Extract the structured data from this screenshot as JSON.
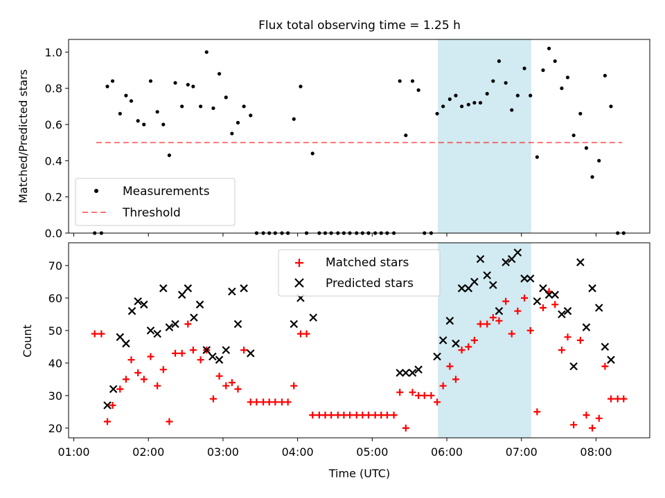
{
  "chart_data": [
    {
      "type": "scatter",
      "title": "Flux total observing time = 1.25 h",
      "xlabel": "",
      "ylabel": "Matched/Predicted stars",
      "xlim": [
        0.93,
        8.72
      ],
      "ylim": [
        0.0,
        1.07
      ],
      "yticks": [
        0.0,
        0.2,
        0.4,
        0.6,
        0.8,
        1.0
      ],
      "ytick_labels": [
        "0.0",
        "0.2",
        "0.4",
        "0.6",
        "0.8",
        "1.0"
      ],
      "shaded_span": {
        "x": [
          5.88,
          7.13
        ],
        "color": "#add8e6"
      },
      "threshold": {
        "name": "Threshold",
        "y": 0.5,
        "x": [
          1.3,
          8.35
        ],
        "color": "#ff0000"
      },
      "legend": {
        "position": "lower-left",
        "entries": [
          "Measurements",
          "Threshold"
        ]
      },
      "series": [
        {
          "name": "Measurements",
          "marker": "dot",
          "color": "#000000",
          "x": [
            1.28,
            1.37,
            1.45,
            1.52,
            1.62,
            1.7,
            1.77,
            1.86,
            1.94,
            2.03,
            2.12,
            2.2,
            2.28,
            2.36,
            2.45,
            2.53,
            2.6,
            2.7,
            2.78,
            2.87,
            2.95,
            3.04,
            3.12,
            3.2,
            3.28,
            3.37,
            3.45,
            3.54,
            3.62,
            3.7,
            3.79,
            3.87,
            3.95,
            4.04,
            4.12,
            4.2,
            4.29,
            4.37,
            4.45,
            4.54,
            4.62,
            4.7,
            4.79,
            4.87,
            4.95,
            5.04,
            5.12,
            5.2,
            5.29,
            5.37,
            5.45,
            5.54,
            5.62,
            5.7,
            5.79,
            5.87,
            5.95,
            6.04,
            6.12,
            6.2,
            6.29,
            6.37,
            6.45,
            6.54,
            6.62,
            6.7,
            6.79,
            6.87,
            6.95,
            7.04,
            7.12,
            7.21,
            7.29,
            7.37,
            7.45,
            7.54,
            7.62,
            7.7,
            7.79,
            7.87,
            7.95,
            8.04,
            8.12,
            8.2,
            8.29,
            8.37
          ],
          "y": [
            0.0,
            0.0,
            0.81,
            0.84,
            0.66,
            0.76,
            0.73,
            0.62,
            0.6,
            0.84,
            0.67,
            0.6,
            0.43,
            0.83,
            0.7,
            0.82,
            0.81,
            0.7,
            1.0,
            0.69,
            0.88,
            0.75,
            0.55,
            0.61,
            0.7,
            0.65,
            0.0,
            0.0,
            0.0,
            0.0,
            0.0,
            0.0,
            0.63,
            0.81,
            0.0,
            0.44,
            0.0,
            0.0,
            0.0,
            0.0,
            0.0,
            0.0,
            0.0,
            0.0,
            0.0,
            0.0,
            0.0,
            0.0,
            0.0,
            0.84,
            0.54,
            0.84,
            0.79,
            0.0,
            0.0,
            0.66,
            0.7,
            0.74,
            0.76,
            0.7,
            0.71,
            0.72,
            0.72,
            0.77,
            0.84,
            0.95,
            0.83,
            0.68,
            0.76,
            0.91,
            0.76,
            0.42,
            0.9,
            1.02,
            0.95,
            0.8,
            0.86,
            0.54,
            0.66,
            0.47,
            0.31,
            0.4,
            0.87,
            0.7,
            0.0,
            0.0
          ]
        }
      ]
    },
    {
      "type": "scatter",
      "title": "",
      "xlabel": "Time (UTC)",
      "ylabel": "Count",
      "xlim": [
        0.93,
        8.72
      ],
      "ylim": [
        17,
        77
      ],
      "xticks": [
        1,
        2,
        3,
        4,
        5,
        6,
        7,
        8
      ],
      "xtick_labels": [
        "01:00",
        "02:00",
        "03:00",
        "04:00",
        "05:00",
        "06:00",
        "07:00",
        "08:00"
      ],
      "yticks": [
        20,
        30,
        40,
        50,
        60,
        70
      ],
      "ytick_labels": [
        "20",
        "30",
        "40",
        "50",
        "60",
        "70"
      ],
      "shaded_span": {
        "x": [
          5.88,
          7.13
        ],
        "color": "#add8e6"
      },
      "legend": {
        "position": "upper-center",
        "entries": [
          "Matched stars",
          "Predicted stars"
        ]
      },
      "series": [
        {
          "name": "Matched stars",
          "marker": "plus",
          "color": "#ff0000",
          "x": [
            1.28,
            1.37,
            1.45,
            1.52,
            1.62,
            1.7,
            1.77,
            1.86,
            1.94,
            2.03,
            2.12,
            2.2,
            2.28,
            2.36,
            2.45,
            2.53,
            2.6,
            2.7,
            2.78,
            2.87,
            2.95,
            3.04,
            3.12,
            3.2,
            3.28,
            3.37,
            3.45,
            3.54,
            3.62,
            3.7,
            3.79,
            3.87,
            3.95,
            4.04,
            4.12,
            4.2,
            4.29,
            4.37,
            4.45,
            4.54,
            4.62,
            4.7,
            4.79,
            4.87,
            4.95,
            5.04,
            5.12,
            5.2,
            5.29,
            5.37,
            5.45,
            5.54,
            5.62,
            5.7,
            5.79,
            5.87,
            5.95,
            6.04,
            6.12,
            6.2,
            6.29,
            6.37,
            6.45,
            6.54,
            6.62,
            6.7,
            6.79,
            6.87,
            6.95,
            7.04,
            7.12,
            7.21,
            7.29,
            7.37,
            7.45,
            7.54,
            7.62,
            7.7,
            7.79,
            7.87,
            7.95,
            8.04,
            8.12,
            8.2,
            8.29,
            8.37
          ],
          "y": [
            49,
            49,
            22,
            27,
            32,
            35,
            41,
            37,
            35,
            42,
            33,
            38,
            22,
            43,
            43,
            52,
            44,
            41,
            44,
            29,
            36,
            33,
            34,
            32,
            44,
            28,
            28,
            28,
            28,
            28,
            28,
            28,
            33,
            49,
            49,
            24,
            24,
            24,
            24,
            24,
            24,
            24,
            24,
            24,
            24,
            24,
            24,
            24,
            24,
            31,
            20,
            31,
            30,
            30,
            30,
            28,
            33,
            39,
            35,
            44,
            45,
            47,
            52,
            52,
            54,
            53,
            59,
            49,
            56,
            60,
            50,
            25,
            57,
            62,
            58,
            44,
            48,
            21,
            47,
            24,
            20,
            23,
            39,
            29,
            29,
            29
          ]
        },
        {
          "name": "Predicted stars",
          "marker": "x",
          "color": "#000000",
          "x": [
            1.45,
            1.53,
            1.62,
            1.7,
            1.78,
            1.86,
            1.94,
            2.03,
            2.12,
            2.2,
            2.28,
            2.36,
            2.45,
            2.53,
            2.61,
            2.69,
            2.78,
            2.86,
            2.95,
            3.04,
            3.12,
            3.2,
            3.28,
            3.37,
            3.95,
            4.04,
            4.21,
            5.37,
            5.45,
            5.54,
            5.62,
            5.87,
            5.95,
            6.04,
            6.12,
            6.2,
            6.29,
            6.37,
            6.45,
            6.54,
            6.62,
            6.7,
            6.79,
            6.87,
            6.95,
            7.04,
            7.12,
            7.21,
            7.29,
            7.37,
            7.45,
            7.54,
            7.62,
            7.7,
            7.79,
            7.87,
            7.95,
            8.04,
            8.12,
            8.2
          ],
          "y": [
            27,
            32,
            48,
            46,
            56,
            59,
            58,
            50,
            49,
            63,
            51,
            52,
            61,
            63,
            54,
            58,
            44,
            42,
            41,
            44,
            62,
            52,
            63,
            43,
            52,
            60,
            54,
            37,
            37,
            37,
            38,
            42,
            47,
            53,
            46,
            63,
            63,
            65,
            72,
            67,
            64,
            56,
            71,
            72,
            74,
            66,
            66,
            59,
            63,
            61,
            61,
            55,
            56,
            39,
            71,
            51,
            63,
            57,
            45,
            41
          ]
        }
      ]
    }
  ]
}
